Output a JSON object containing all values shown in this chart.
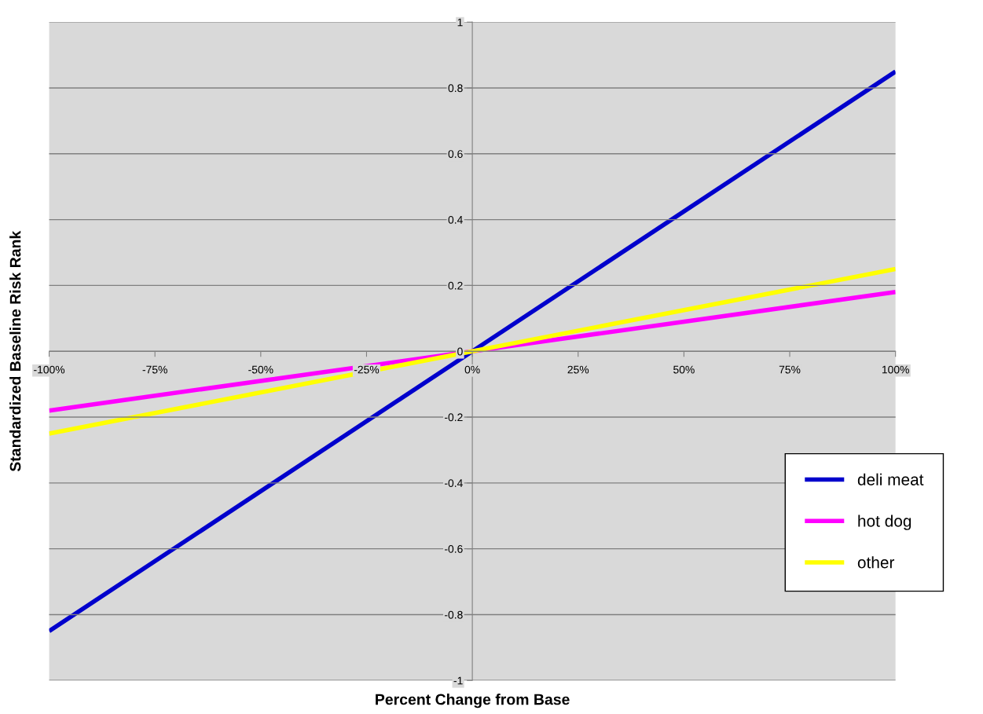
{
  "chart_data": {
    "type": "line",
    "xlabel": "Percent Change from Base",
    "ylabel": "Standardized Baseline Risk Rank",
    "x": [
      -100,
      0,
      100
    ],
    "series": [
      {
        "name": "deli meat",
        "color": "#0000cc",
        "values": [
          -0.85,
          0,
          0.85
        ]
      },
      {
        "name": "hot dog",
        "color": "#ff00ff",
        "values": [
          -0.18,
          0,
          0.18
        ]
      },
      {
        "name": "other",
        "color": "#ffff00",
        "values": [
          -0.25,
          0,
          0.25
        ]
      }
    ],
    "xlim": [
      -100,
      100
    ],
    "xticks": [
      {
        "value": -100,
        "label": "-100%"
      },
      {
        "value": -75,
        "label": "-75%"
      },
      {
        "value": -50,
        "label": "-50%"
      },
      {
        "value": -25,
        "label": "-25%"
      },
      {
        "value": 0,
        "label": "0%"
      },
      {
        "value": 25,
        "label": "25%"
      },
      {
        "value": 50,
        "label": "50%"
      },
      {
        "value": 75,
        "label": "75%"
      },
      {
        "value": 100,
        "label": "100%"
      }
    ],
    "ylim": [
      -1,
      1
    ],
    "yticks": [
      -1,
      -0.8,
      -0.6,
      -0.4,
      -0.2,
      0,
      0.2,
      0.4,
      0.6,
      0.8,
      1
    ],
    "grid": "y",
    "legend": "right",
    "marker": "none",
    "line_style": "solid"
  }
}
